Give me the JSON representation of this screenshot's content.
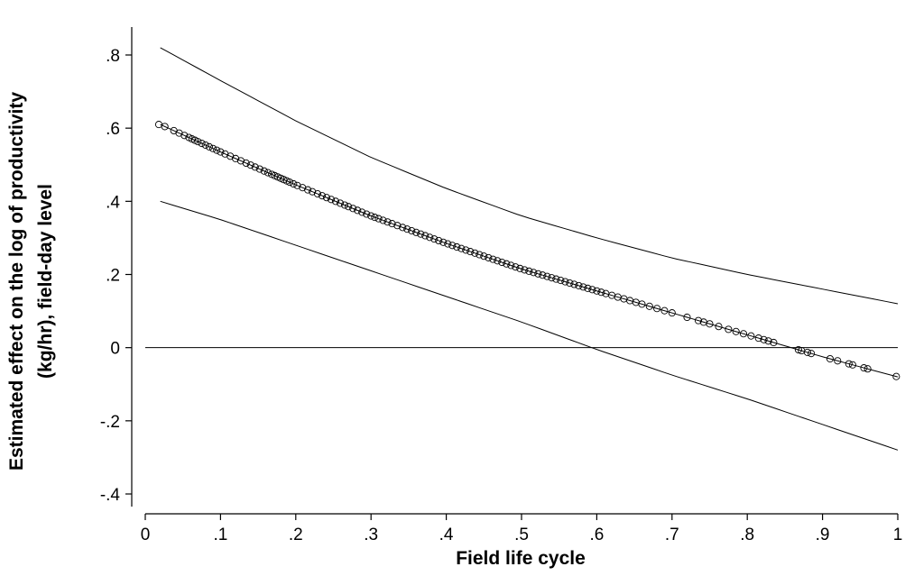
{
  "chart_data": {
    "type": "line",
    "title": "",
    "xlabel": "Field life cycle",
    "ylabel_lines": [
      "Estimated effect on the log of  productivity",
      "(kg/hr), field-day level"
    ],
    "xlim": [
      0,
      1
    ],
    "ylim": [
      -0.45,
      0.85
    ],
    "x_ticks": [
      0,
      0.1,
      0.2,
      0.3,
      0.4,
      0.5,
      0.6,
      0.7,
      0.8,
      0.9,
      1
    ],
    "x_tick_labels": [
      "0",
      ".1",
      ".2",
      ".3",
      ".4",
      ".5",
      ".6",
      ".7",
      ".8",
      ".9",
      "1"
    ],
    "y_ticks": [
      -0.4,
      -0.2,
      0,
      0.2,
      0.4,
      0.6,
      0.8
    ],
    "y_tick_labels": [
      "-.4",
      "-.2",
      "0",
      ".2",
      ".4",
      ".6",
      ".8"
    ],
    "grid": false,
    "legend": "none",
    "reference_line_y": 0,
    "estimate_curve": {
      "x": [
        0.02,
        0.1,
        0.2,
        0.3,
        0.4,
        0.5,
        0.6,
        0.7,
        0.8,
        0.9,
        1.0
      ],
      "y": [
        0.61,
        0.535,
        0.445,
        0.36,
        0.285,
        0.215,
        0.155,
        0.095,
        0.035,
        -0.025,
        -0.08
      ]
    },
    "upper_bound": {
      "x": [
        0.02,
        0.1,
        0.2,
        0.3,
        0.4,
        0.5,
        0.6,
        0.7,
        0.8,
        0.9,
        1.0
      ],
      "y": [
        0.82,
        0.73,
        0.62,
        0.52,
        0.435,
        0.36,
        0.3,
        0.245,
        0.2,
        0.16,
        0.12
      ]
    },
    "lower_bound": {
      "x": [
        0.02,
        0.1,
        0.2,
        0.3,
        0.4,
        0.5,
        0.6,
        0.7,
        0.8,
        0.9,
        1.0
      ],
      "y": [
        0.4,
        0.35,
        0.28,
        0.21,
        0.14,
        0.07,
        -0.005,
        -0.075,
        -0.14,
        -0.21,
        -0.28
      ]
    },
    "observations_x": [
      0.018,
      0.026,
      0.038,
      0.045,
      0.052,
      0.058,
      0.062,
      0.066,
      0.07,
      0.075,
      0.08,
      0.085,
      0.09,
      0.095,
      0.1,
      0.106,
      0.113,
      0.12,
      0.127,
      0.134,
      0.14,
      0.146,
      0.152,
      0.158,
      0.163,
      0.168,
      0.172,
      0.176,
      0.18,
      0.184,
      0.188,
      0.192,
      0.197,
      0.202,
      0.209,
      0.216,
      0.222,
      0.229,
      0.235,
      0.241,
      0.247,
      0.253,
      0.259,
      0.265,
      0.27,
      0.276,
      0.282,
      0.288,
      0.294,
      0.3,
      0.305,
      0.31,
      0.316,
      0.322,
      0.328,
      0.335,
      0.342,
      0.348,
      0.354,
      0.36,
      0.366,
      0.372,
      0.378,
      0.384,
      0.39,
      0.396,
      0.402,
      0.408,
      0.414,
      0.42,
      0.426,
      0.432,
      0.438,
      0.444,
      0.45,
      0.456,
      0.462,
      0.468,
      0.474,
      0.48,
      0.486,
      0.492,
      0.498,
      0.504,
      0.51,
      0.516,
      0.522,
      0.528,
      0.534,
      0.54,
      0.546,
      0.552,
      0.558,
      0.564,
      0.57,
      0.576,
      0.582,
      0.588,
      0.594,
      0.6,
      0.606,
      0.612,
      0.62,
      0.628,
      0.636,
      0.644,
      0.652,
      0.66,
      0.67,
      0.68,
      0.69,
      0.7,
      0.72,
      0.735,
      0.742,
      0.75,
      0.762,
      0.775,
      0.785,
      0.795,
      0.805,
      0.815,
      0.822,
      0.828,
      0.835,
      0.868,
      0.872,
      0.88,
      0.885,
      0.91,
      0.92,
      0.935,
      0.94,
      0.955,
      0.96,
      0.998
    ]
  }
}
